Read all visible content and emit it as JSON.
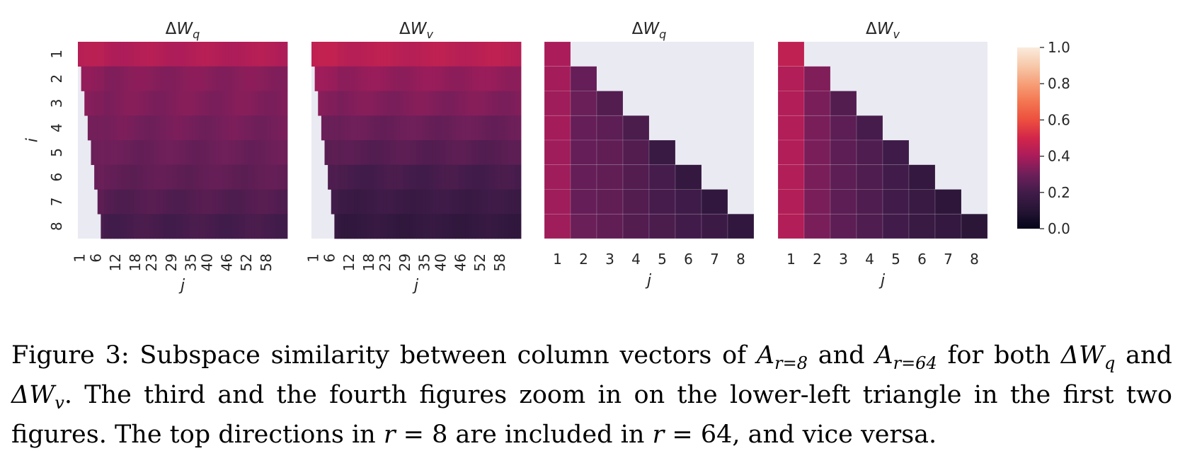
{
  "chart_data": [
    {
      "type": "heatmap",
      "title": "ΔW_q",
      "title_parts": {
        "base": "ΔW",
        "sub": "q"
      },
      "ylabel": "i",
      "xlabel": "j",
      "rows": [
        1,
        2,
        3,
        4,
        5,
        6,
        7,
        8
      ],
      "x_range": [
        1,
        64
      ],
      "x_tick_labels": [
        "1",
        "6",
        "12",
        "18",
        "23",
        "29",
        "35",
        "40",
        "46",
        "52",
        "58"
      ],
      "y_tick_labels": [
        "1",
        "2",
        "3",
        "4",
        "5",
        "6",
        "7",
        "8"
      ],
      "masked": "j < i",
      "row_values": [
        0.42,
        0.34,
        0.33,
        0.31,
        0.29,
        0.27,
        0.24,
        0.21
      ]
    },
    {
      "type": "heatmap",
      "title": "ΔW_v",
      "title_parts": {
        "base": "ΔW",
        "sub": "v"
      },
      "ylabel": "",
      "xlabel": "j",
      "rows": [
        1,
        2,
        3,
        4,
        5,
        6,
        7,
        8
      ],
      "x_range": [
        1,
        64
      ],
      "x_tick_labels": [
        "1",
        "6",
        "12",
        "18",
        "23",
        "29",
        "35",
        "40",
        "46",
        "52",
        "58"
      ],
      "masked": "j < i",
      "row_values": [
        0.44,
        0.36,
        0.33,
        0.29,
        0.25,
        0.21,
        0.18,
        0.15
      ]
    },
    {
      "type": "heatmap",
      "title": "ΔW_q",
      "title_parts": {
        "base": "ΔW",
        "sub": "q"
      },
      "xlabel": "j",
      "rows": [
        1,
        2,
        3,
        4,
        5,
        6,
        7,
        8
      ],
      "cols": [
        1,
        2,
        3,
        4,
        5,
        6,
        7,
        8
      ],
      "x_tick_labels": [
        "1",
        "2",
        "3",
        "4",
        "5",
        "6",
        "7",
        "8"
      ],
      "masked": "j > i",
      "values": [
        [
          0.4
        ],
        [
          0.39,
          0.28
        ],
        [
          0.38,
          0.29,
          0.24
        ],
        [
          0.39,
          0.28,
          0.26,
          0.22
        ],
        [
          0.38,
          0.28,
          0.27,
          0.24,
          0.17
        ],
        [
          0.38,
          0.28,
          0.27,
          0.24,
          0.21,
          0.15
        ],
        [
          0.38,
          0.28,
          0.27,
          0.24,
          0.21,
          0.19,
          0.14
        ],
        [
          0.38,
          0.29,
          0.27,
          0.24,
          0.22,
          0.2,
          0.18,
          0.14
        ]
      ]
    },
    {
      "type": "heatmap",
      "title": "ΔW_v",
      "title_parts": {
        "base": "ΔW",
        "sub": "v"
      },
      "xlabel": "j",
      "rows": [
        1,
        2,
        3,
        4,
        5,
        6,
        7,
        8
      ],
      "cols": [
        1,
        2,
        3,
        4,
        5,
        6,
        7,
        8
      ],
      "x_tick_labels": [
        "1",
        "2",
        "3",
        "4",
        "5",
        "6",
        "7",
        "8"
      ],
      "masked": "j > i",
      "values": [
        [
          0.45
        ],
        [
          0.42,
          0.33
        ],
        [
          0.42,
          0.32,
          0.24
        ],
        [
          0.42,
          0.32,
          0.26,
          0.21
        ],
        [
          0.42,
          0.32,
          0.26,
          0.23,
          0.19
        ],
        [
          0.42,
          0.32,
          0.26,
          0.23,
          0.2,
          0.15
        ],
        [
          0.42,
          0.32,
          0.26,
          0.23,
          0.2,
          0.17,
          0.13
        ],
        [
          0.42,
          0.32,
          0.26,
          0.23,
          0.2,
          0.17,
          0.15,
          0.12
        ]
      ]
    }
  ],
  "colorbar": {
    "range": [
      0.0,
      1.0
    ],
    "tick_labels": [
      "1.0",
      "0.8",
      "0.6",
      "0.4",
      "0.2",
      "0.0"
    ],
    "tick_values": [
      1.0,
      0.8,
      0.6,
      0.4,
      0.2,
      0.0
    ],
    "colormap": "rocket",
    "masked_color": "#eaeaf2"
  },
  "caption": {
    "lead": "Figure 3: Subspace similarity between column vectors of ",
    "m1": "A",
    "m1_sub": "r=8",
    "t2": " and ",
    "m2": "A",
    "m2_sub": "r=64",
    "t3": " for both ",
    "m3": "ΔW",
    "m3_sub": "q",
    "t4": " and ",
    "m4": "ΔW",
    "m4_sub": "v",
    "t5": ". The third and the fourth figures zoom in on the lower-left triangle in the first two figures. The top directions in ",
    "m5": "r",
    "t6": " = 8 are included in ",
    "m6": "r",
    "t7": " = 64, and vice versa."
  }
}
